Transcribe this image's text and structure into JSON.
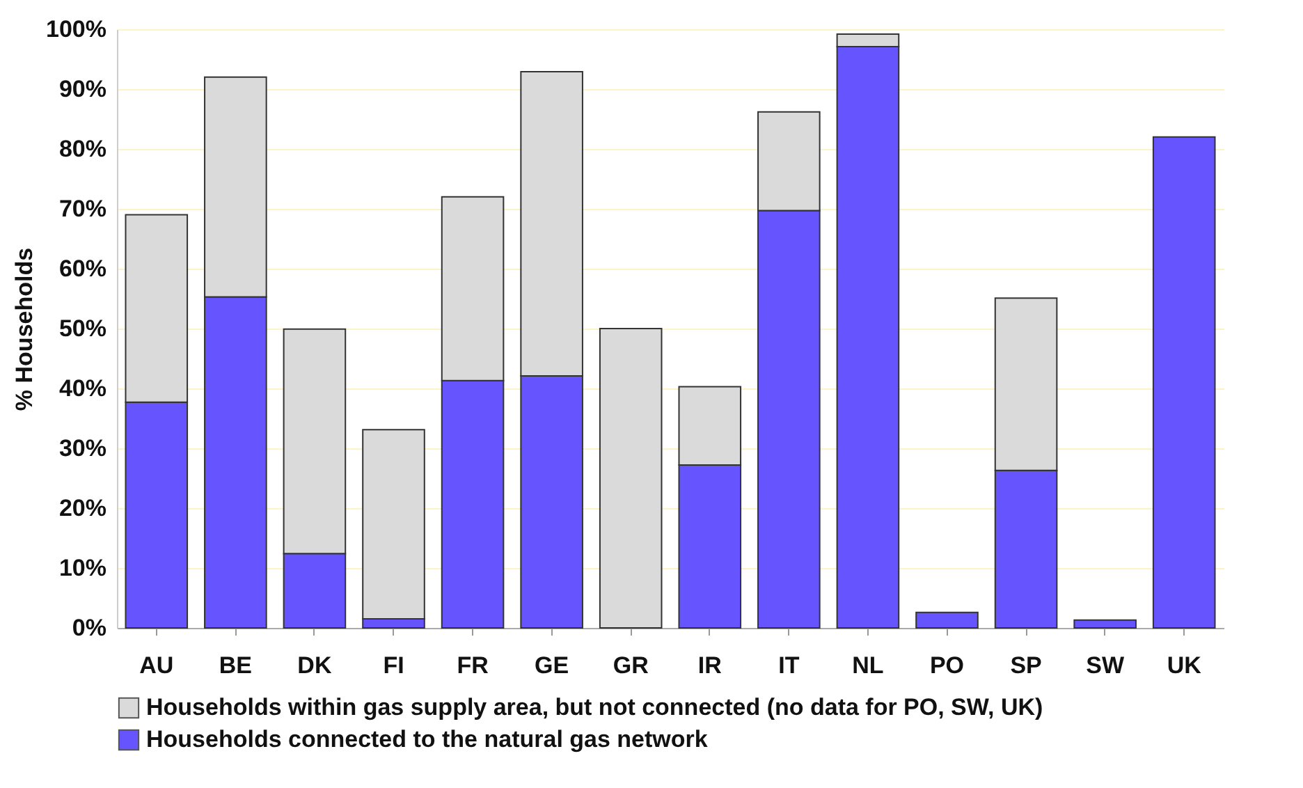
{
  "chart_data": {
    "type": "bar",
    "stacked": true,
    "ylabel": "% Households",
    "categories": [
      "AU",
      "BE",
      "DK",
      "FI",
      "FR",
      "GE",
      "GR",
      "IR",
      "IT",
      "NL",
      "PO",
      "SP",
      "SW",
      "UK"
    ],
    "series": [
      {
        "name": "Households connected to the natural gas network",
        "color": "#6655ff",
        "values": [
          37.7,
          55.3,
          12.4,
          1.5,
          41.3,
          42.1,
          null,
          27.2,
          69.7,
          97.1,
          2.6,
          26.3,
          1.3,
          82.0
        ]
      },
      {
        "name": "Households within gas supply area, but not connected (no data for PO, SW, UK)",
        "color": "#dadada",
        "values": [
          31.3,
          36.7,
          37.5,
          31.6,
          30.7,
          50.8,
          50.0,
          13.1,
          16.5,
          2.1,
          null,
          28.8,
          null,
          null
        ]
      }
    ],
    "ylim": [
      0,
      100
    ],
    "yticks": [
      {
        "value": 0,
        "label": "0%"
      },
      {
        "value": 10,
        "label": "10%"
      },
      {
        "value": 20,
        "label": "20%"
      },
      {
        "value": 30,
        "label": "30%"
      },
      {
        "value": 40,
        "label": "40%"
      },
      {
        "value": 50,
        "label": "50%"
      },
      {
        "value": 60,
        "label": "60%"
      },
      {
        "value": 70,
        "label": "70%"
      },
      {
        "value": 80,
        "label": "80%"
      },
      {
        "value": 90,
        "label": "90%"
      },
      {
        "value": 100,
        "label": "100%"
      }
    ],
    "grid": "y",
    "legend": "bottom left"
  }
}
